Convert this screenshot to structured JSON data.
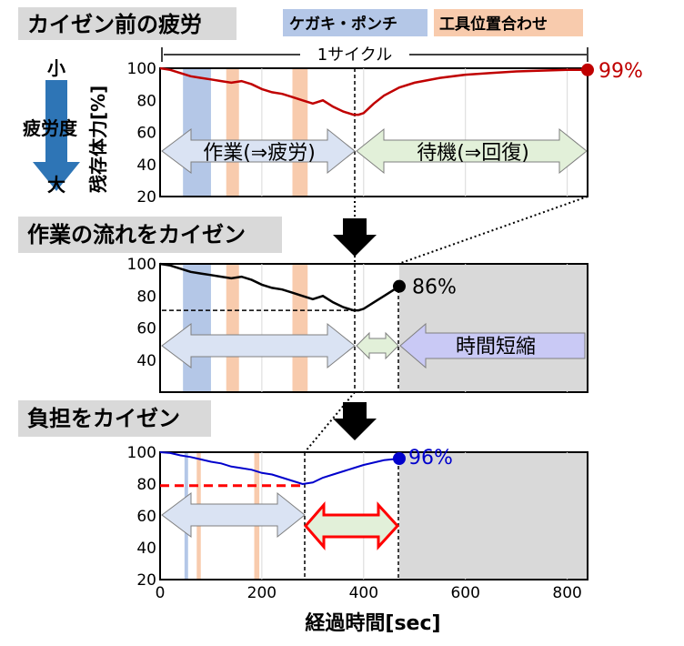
{
  "headers": {
    "before": "カイゼン前の疲労",
    "workflow": "作業の流れをカイゼン",
    "burden": "負担をカイゼン"
  },
  "legend": {
    "marking": {
      "label": "ケガキ・ポンチ",
      "color": "#b4c7e7"
    },
    "tooling": {
      "label": "工具位置合わせ",
      "color": "#f8cbad"
    }
  },
  "cycle_label": "1サイクル",
  "fatigue_axis": {
    "low": "小",
    "title": "疲労度",
    "high": "大"
  },
  "y_axis_label": "残存体力[%]",
  "x_axis_label": "経過時間[sec]",
  "arrows": {
    "work": "作業(⇒疲労)",
    "wait": "待機(⇒回復)",
    "shorten": "時間短縮"
  },
  "colors": {
    "before": "#c00000",
    "workflow": "#000000",
    "burden": "#0000cc",
    "shade": "#d9d9d9",
    "red_dash": "#ff0000"
  },
  "chart_data": [
    {
      "type": "line",
      "name": "カイゼン前の疲労",
      "xlim": [
        0,
        840
      ],
      "ylim": [
        20,
        100
      ],
      "yticks": [
        20,
        40,
        60,
        80,
        100
      ],
      "x": [
        0,
        20,
        40,
        60,
        80,
        100,
        120,
        140,
        160,
        180,
        200,
        220,
        240,
        260,
        280,
        300,
        320,
        340,
        360,
        380,
        390,
        400,
        420,
        440,
        470,
        500,
        550,
        600,
        650,
        700,
        750,
        800,
        840
      ],
      "y": [
        100,
        99,
        97,
        95,
        94,
        93,
        92,
        91,
        92,
        90,
        87,
        85,
        84,
        82,
        80,
        78,
        80,
        76,
        73,
        71,
        71,
        72,
        78,
        83,
        88,
        91,
        94,
        96,
        97,
        98,
        98.5,
        99,
        99
      ],
      "end_label": "99%",
      "bands_marking": [
        [
          45,
          100
        ]
      ],
      "bands_tooling": [
        [
          130,
          155
        ],
        [
          260,
          290
        ]
      ]
    },
    {
      "type": "line",
      "name": "作業の流れをカイゼン",
      "xlim": [
        0,
        840
      ],
      "ylim": [
        20,
        100
      ],
      "yticks": [
        40,
        60,
        80,
        100
      ],
      "x": [
        0,
        20,
        40,
        60,
        80,
        100,
        120,
        140,
        160,
        180,
        200,
        220,
        240,
        260,
        280,
        300,
        320,
        340,
        360,
        380,
        390,
        400,
        420,
        440,
        470
      ],
      "y": [
        100,
        99,
        97,
        95,
        94,
        93,
        92,
        91,
        92,
        90,
        87,
        85,
        84,
        82,
        80,
        78,
        80,
        76,
        73,
        71,
        71,
        72,
        76,
        80,
        86
      ],
      "end_label": "86%",
      "reference_line": 71,
      "bands_marking": [
        [
          45,
          100
        ]
      ],
      "bands_tooling": [
        [
          130,
          155
        ],
        [
          260,
          290
        ]
      ]
    },
    {
      "type": "line",
      "name": "負担をカイゼン",
      "xlim": [
        0,
        840
      ],
      "ylim": [
        20,
        100
      ],
      "yticks": [
        20,
        40,
        60,
        80,
        100
      ],
      "xticks": [
        0,
        200,
        400,
        600,
        800
      ],
      "x": [
        0,
        20,
        40,
        60,
        80,
        100,
        120,
        140,
        160,
        180,
        200,
        220,
        240,
        260,
        280,
        300,
        320,
        340,
        360,
        380,
        400,
        420,
        440,
        470
      ],
      "y": [
        100,
        99.5,
        98,
        97,
        95.5,
        94,
        93,
        91,
        90,
        89,
        87,
        86,
        84,
        82,
        80,
        81,
        84,
        86,
        88,
        90,
        92,
        93.5,
        95,
        96
      ],
      "end_label": "96%",
      "reference_line": 79,
      "bands_marking": [
        [
          48,
          55
        ]
      ],
      "bands_tooling": [
        [
          72,
          80
        ],
        [
          185,
          195
        ]
      ]
    }
  ]
}
